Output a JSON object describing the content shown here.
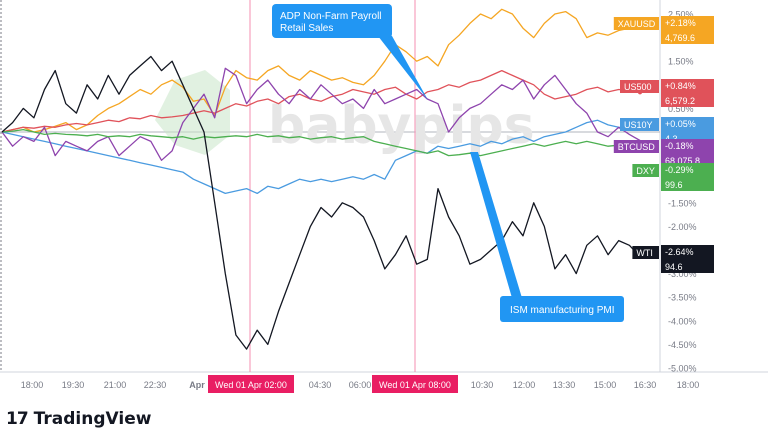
{
  "chart_data": {
    "type": "line",
    "y_unit": "%",
    "ylim": [
      -5.0,
      2.6
    ],
    "y_ticks": [
      "2.50%",
      "2.00%",
      "1.50%",
      "1.00%",
      "0.50%",
      "0.00%",
      "-0.50%",
      "-1.00%",
      "-1.50%",
      "-2.00%",
      "-2.50%",
      "-3.00%",
      "-3.50%",
      "-4.00%",
      "-4.50%",
      "-5.00%"
    ],
    "x_ticks": [
      "18:00",
      "19:30",
      "21:00",
      "22:30",
      "Apr",
      "04:30",
      "06:00",
      "10:30",
      "12:00",
      "13:30",
      "15:00",
      "16:30",
      "18:00"
    ],
    "x_highlight_labels": [
      "Wed 01 Apr   02:00",
      "Wed 01 Apr   08:00"
    ],
    "annotations": [
      {
        "text": "ADP Non-Farm Payroll\nRetail Sales",
        "color": "#2196f3"
      },
      {
        "text": "ISM manufacturing PMI",
        "color": "#2196f3"
      }
    ],
    "series": [
      {
        "name": "XAUUSD",
        "color": "#f5a623",
        "change": "+2.18%",
        "last": "4,769.6",
        "values": [
          0.0,
          0.05,
          0.1,
          0.0,
          0.05,
          0.12,
          0.2,
          0.05,
          0.15,
          0.35,
          0.5,
          0.6,
          0.75,
          0.9,
          0.8,
          1.0,
          1.1,
          0.95,
          0.65,
          0.7,
          0.35,
          0.95,
          1.3,
          1.15,
          1.1,
          1.3,
          1.4,
          1.2,
          1.1,
          1.3,
          1.2,
          1.1,
          1.15,
          1.05,
          1.0,
          1.2,
          1.5,
          1.85,
          1.7,
          1.5,
          1.6,
          1.4,
          1.85,
          2.05,
          2.3,
          2.5,
          2.4,
          2.6,
          2.5,
          2.2,
          2.0,
          2.3,
          2.5,
          2.55,
          2.4,
          2.0,
          2.1,
          2.05,
          2.15,
          2.2,
          2.18
        ]
      },
      {
        "name": "US500",
        "color": "#e0525a",
        "change": "+0.84%",
        "last": "6,579.2",
        "values": [
          0.0,
          0.05,
          0.1,
          0.08,
          0.12,
          0.1,
          0.15,
          0.18,
          0.15,
          0.2,
          0.25,
          0.22,
          0.3,
          0.28,
          0.35,
          0.3,
          0.32,
          0.35,
          0.4,
          0.45,
          0.4,
          0.5,
          0.6,
          0.55,
          0.65,
          0.7,
          0.6,
          0.75,
          0.8,
          0.7,
          0.65,
          0.75,
          0.8,
          0.9,
          0.85,
          0.8,
          0.9,
          0.95,
          0.8,
          0.7,
          0.85,
          0.9,
          1.0,
          0.95,
          1.05,
          1.1,
          1.2,
          1.3,
          1.2,
          1.1,
          1.0,
          0.8,
          0.7,
          0.75,
          0.8,
          0.9,
          0.95,
          0.85,
          0.9,
          0.88,
          0.84
        ]
      },
      {
        "name": "US10Y",
        "color": "#4a9be0",
        "change": "+0.05%",
        "last": "4.3",
        "values": [
          0.0,
          -0.05,
          -0.1,
          -0.15,
          -0.2,
          -0.25,
          -0.3,
          -0.35,
          -0.4,
          -0.45,
          -0.5,
          -0.55,
          -0.6,
          -0.65,
          -0.7,
          -0.75,
          -0.8,
          -0.85,
          -1.0,
          -1.1,
          -1.2,
          -1.3,
          -1.25,
          -1.2,
          -1.3,
          -1.15,
          -1.2,
          -1.1,
          -1.0,
          -1.05,
          -1.0,
          -1.05,
          -1.0,
          -0.95,
          -1.0,
          -0.9,
          -1.0,
          -0.6,
          -0.5,
          -0.4,
          -0.45,
          -0.3,
          -0.35,
          -0.3,
          -0.25,
          -0.3,
          -0.2,
          -0.25,
          -0.15,
          -0.1,
          -0.2,
          -0.1,
          -0.05,
          0.0,
          0.1,
          0.2,
          0.25,
          0.15,
          0.1,
          0.08,
          0.05
        ]
      },
      {
        "name": "BTCUSD",
        "color": "#8e44ad",
        "change": "-0.18%",
        "last": "68,075.8",
        "values": [
          0.0,
          -0.3,
          -0.1,
          -0.2,
          0.1,
          -0.5,
          -0.2,
          -0.3,
          -0.4,
          -0.2,
          -0.1,
          -0.5,
          -0.3,
          -0.1,
          -0.2,
          -0.6,
          -0.4,
          0.2,
          0.5,
          0.8,
          0.3,
          1.35,
          1.2,
          0.6,
          0.9,
          1.1,
          0.8,
          0.6,
          0.9,
          0.7,
          1.0,
          0.8,
          0.6,
          0.7,
          0.5,
          0.9,
          0.6,
          0.7,
          0.8,
          0.9,
          0.7,
          0.6,
          0.0,
          0.3,
          0.5,
          0.6,
          0.8,
          1.0,
          0.9,
          1.1,
          0.7,
          1.0,
          1.2,
          0.9,
          0.6,
          0.4,
          0.0,
          -0.1,
          0.1,
          -0.05,
          -0.18
        ]
      },
      {
        "name": "DXY",
        "color": "#4caf50",
        "change": "-0.29%",
        "last": "99.6",
        "values": [
          0.0,
          0.02,
          0.05,
          0.0,
          -0.05,
          -0.03,
          -0.05,
          -0.06,
          -0.08,
          -0.05,
          -0.1,
          -0.08,
          -0.1,
          -0.05,
          -0.08,
          -0.1,
          -0.12,
          -0.1,
          -0.15,
          -0.1,
          -0.12,
          -0.1,
          -0.08,
          -0.1,
          -0.05,
          -0.1,
          -0.08,
          -0.12,
          -0.1,
          -0.15,
          -0.12,
          -0.1,
          -0.15,
          -0.12,
          -0.1,
          -0.2,
          -0.25,
          -0.3,
          -0.35,
          -0.4,
          -0.45,
          -0.4,
          -0.5,
          -0.48,
          -0.45,
          -0.5,
          -0.45,
          -0.4,
          -0.35,
          -0.3,
          -0.25,
          -0.3,
          -0.25,
          -0.2,
          -0.25,
          -0.2,
          -0.25,
          -0.3,
          -0.28,
          -0.3,
          -0.29
        ]
      },
      {
        "name": "WTI",
        "color": "#131722",
        "change": "-2.64%",
        "last": "94.6",
        "values": [
          0.0,
          0.2,
          0.5,
          0.3,
          0.9,
          1.3,
          0.6,
          0.4,
          1.0,
          0.7,
          1.2,
          0.8,
          1.2,
          1.4,
          1.6,
          1.3,
          1.5,
          1.0,
          0.5,
          0.0,
          -1.5,
          -3.0,
          -4.3,
          -4.6,
          -4.2,
          -4.5,
          -3.8,
          -3.2,
          -2.6,
          -2.0,
          -1.6,
          -1.8,
          -1.5,
          -1.6,
          -1.8,
          -2.3,
          -2.9,
          -2.6,
          -2.2,
          -2.8,
          -2.7,
          -1.2,
          -1.8,
          -2.2,
          -2.8,
          -2.7,
          -2.5,
          -2.3,
          -1.9,
          -2.2,
          -1.5,
          -2.0,
          -2.9,
          -2.6,
          -3.0,
          -2.4,
          -2.2,
          -2.6,
          -2.3,
          -2.4,
          -2.64
        ]
      }
    ]
  },
  "watermark": "babypips",
  "brand": {
    "name": "TradingView",
    "mark": "17"
  }
}
